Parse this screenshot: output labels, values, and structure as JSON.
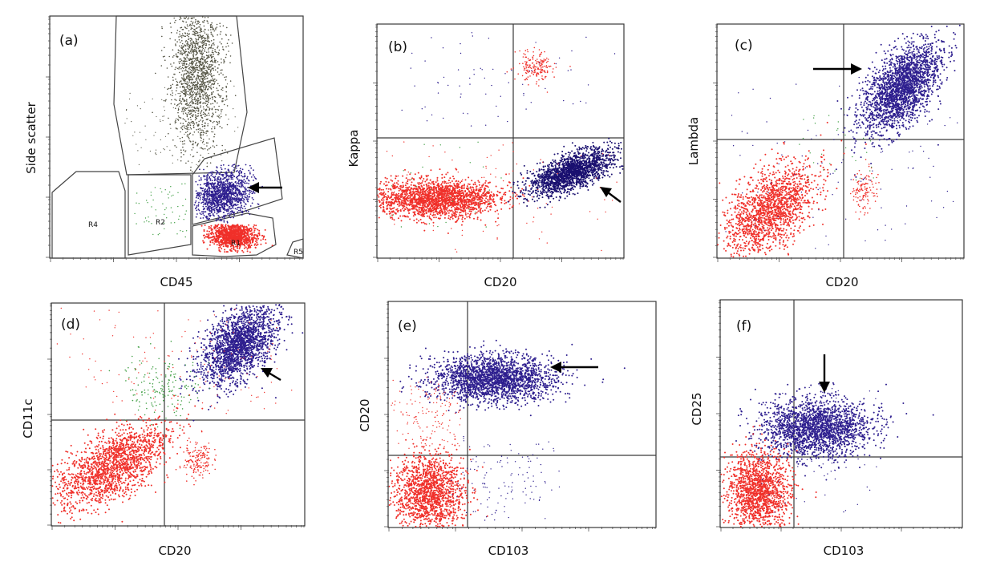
{
  "chart_data": [
    {
      "panel": "(a)",
      "type": "scatter",
      "xlabel": "CD45",
      "ylabel": "Side scatter",
      "gates": [
        "R1",
        "R2",
        "R4",
        "R5"
      ],
      "populations": [
        {
          "color": "#555545",
          "location": "high side scatter, center",
          "relative_density": "high"
        },
        {
          "color": "#2e1f8f",
          "location": "R3 gate, mid",
          "relative_density": "high"
        },
        {
          "color": "#f0302a",
          "location": "R1 gate, low",
          "relative_density": "high"
        },
        {
          "color": "#43a047",
          "location": "R2 gate",
          "relative_density": "low"
        }
      ]
    },
    {
      "panel": "(b)",
      "type": "scatter",
      "xlabel": "CD20",
      "ylabel": "Kappa",
      "quadrants": true,
      "populations": [
        {
          "color": "#f0302a",
          "location": "CD20- Kappa- (lower left)",
          "relative_density": "high"
        },
        {
          "color": "#1a1070",
          "location": "CD20+ Kappa-/dim (lower right)",
          "relative_density": "high"
        },
        {
          "color": "#f0302a",
          "location": "CD20+ Kappa+ (upper right)",
          "relative_density": "low"
        }
      ]
    },
    {
      "panel": "(c)",
      "type": "scatter",
      "xlabel": "CD20",
      "ylabel": "Lambda",
      "quadrants": true,
      "populations": [
        {
          "color": "#2e1f8f",
          "location": "CD20+ Lambda+ (upper right)",
          "relative_density": "high"
        },
        {
          "color": "#f0302a",
          "location": "CD20- Lambda- (lower left)",
          "relative_density": "high"
        }
      ]
    },
    {
      "panel": "(d)",
      "type": "scatter",
      "xlabel": "CD20",
      "ylabel": "CD11c",
      "quadrants": true,
      "populations": [
        {
          "color": "#2e1f8f",
          "location": "CD20+ CD11c+ (upper right)",
          "relative_density": "high"
        },
        {
          "color": "#f0302a",
          "location": "CD20- CD11c- (lower left)",
          "relative_density": "high"
        },
        {
          "color": "#43a047",
          "location": "upper, near CD20 divider",
          "relative_density": "low"
        }
      ]
    },
    {
      "panel": "(e)",
      "type": "scatter",
      "xlabel": "CD103",
      "ylabel": "CD20",
      "quadrants": true,
      "populations": [
        {
          "color": "#2e1f8f",
          "location": "CD103+ CD20+ (upper right)",
          "relative_density": "high"
        },
        {
          "color": "#f0302a",
          "location": "CD103- CD20- (lower left)",
          "relative_density": "high"
        }
      ]
    },
    {
      "panel": "(f)",
      "type": "scatter",
      "xlabel": "CD103",
      "ylabel": "CD25",
      "quadrants": true,
      "populations": [
        {
          "color": "#2e1f8f",
          "location": "CD103+ CD25+ (upper right)",
          "relative_density": "high"
        },
        {
          "color": "#f0302a",
          "location": "CD103- CD25- (lower left)",
          "relative_density": "high"
        }
      ]
    }
  ],
  "colors": {
    "blue": "#2e1f8f",
    "darkblue": "#1a1070",
    "red": "#f0302a",
    "green": "#43a047",
    "grey": "#555545"
  },
  "icons": [
    "arrow-icon"
  ]
}
